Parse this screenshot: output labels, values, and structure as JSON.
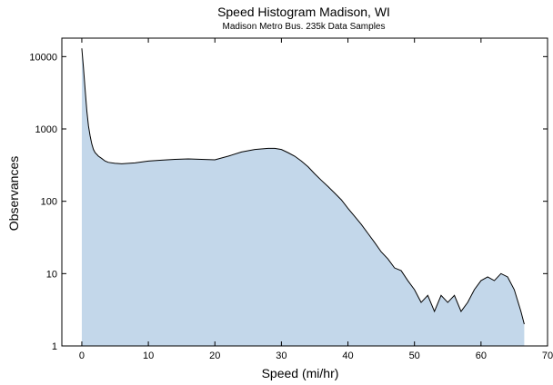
{
  "chart_data": {
    "type": "area",
    "title": "Speed Histogram Madison, WI",
    "subtitle": "Madison Metro Bus. 235k Data Samples",
    "xlabel": "Speed (mi/hr)",
    "ylabel": "Observances",
    "x_ticks": [
      0,
      10,
      20,
      30,
      40,
      50,
      60,
      70
    ],
    "y_ticks": [
      1,
      10,
      100,
      1000,
      10000
    ],
    "y_tick_labels": [
      "1",
      "10",
      "100",
      "1000",
      "10000"
    ],
    "xlim": [
      -3,
      70
    ],
    "ylim": [
      1,
      18000
    ],
    "y_scale": "log",
    "grid": false,
    "colors": {
      "fill": "#c3d7ea",
      "line": "#000000"
    },
    "series": [
      {
        "x": [
          0,
          0.25,
          0.5,
          0.75,
          1,
          1.25,
          1.5,
          1.75,
          2,
          2.5,
          3,
          3.5,
          4,
          5,
          6,
          7,
          8,
          9,
          10,
          12,
          14,
          16,
          18,
          20,
          22,
          24,
          26,
          28,
          29,
          30,
          31,
          32,
          33,
          34,
          35,
          36,
          37,
          38,
          39,
          40,
          41,
          42,
          43,
          44,
          45,
          46,
          47,
          48,
          49,
          50,
          51,
          52,
          53,
          54,
          55,
          56,
          57,
          58,
          59,
          60,
          61,
          62,
          63,
          64,
          65,
          66,
          66.5
        ],
        "y": [
          13000,
          7000,
          3500,
          1800,
          1100,
          800,
          620,
          520,
          470,
          420,
          390,
          360,
          345,
          335,
          330,
          335,
          340,
          350,
          360,
          370,
          380,
          385,
          380,
          375,
          420,
          480,
          520,
          540,
          540,
          520,
          470,
          420,
          360,
          300,
          240,
          195,
          160,
          130,
          105,
          80,
          62,
          48,
          36,
          27,
          20,
          16,
          12,
          11,
          8,
          6,
          4,
          5,
          3,
          5,
          4,
          5,
          3,
          4,
          6,
          8,
          9,
          8,
          10,
          9,
          6,
          3,
          2
        ]
      }
    ]
  }
}
